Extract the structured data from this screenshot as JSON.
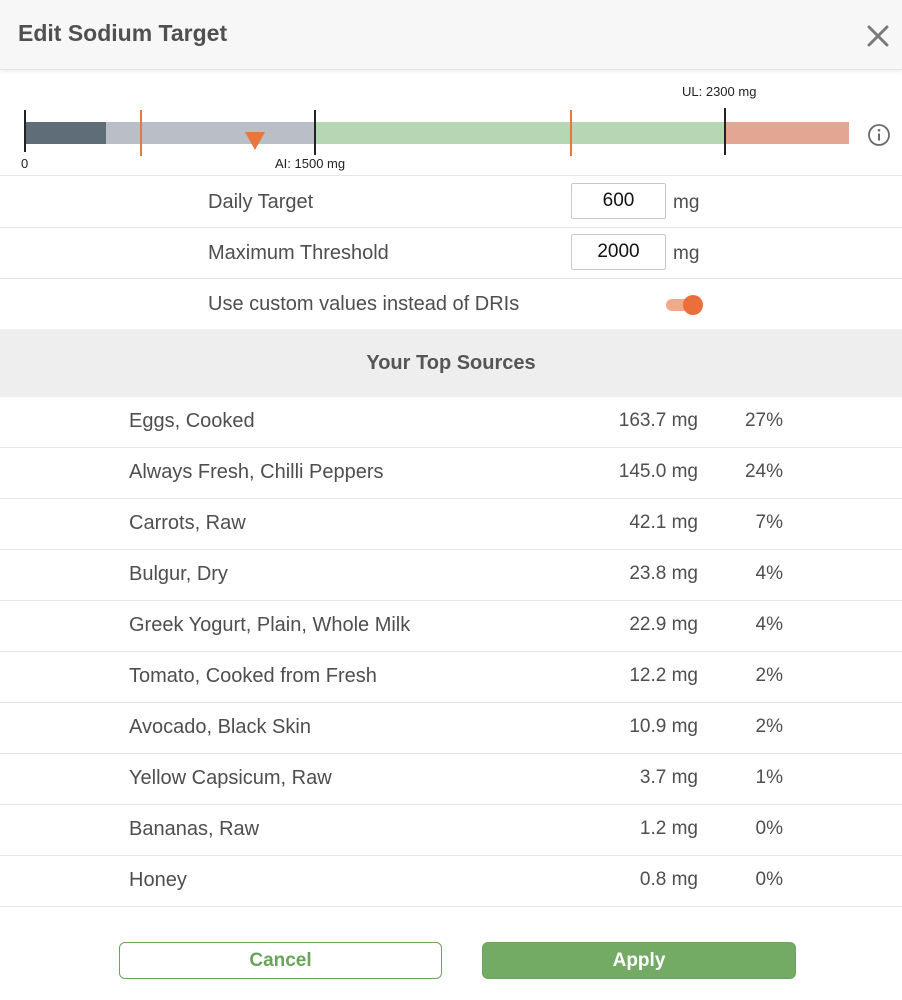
{
  "header": {
    "title": "Edit Sodium Target",
    "close_icon": "close-icon"
  },
  "scale": {
    "zero_label": "0",
    "ai_label": "AI: 1500 mg",
    "ul_label": "UL: 2300 mg",
    "info_icon": "info-icon",
    "colors": {
      "dark": "#5e6d78",
      "gray": "#b9bec7",
      "green": "#b6d7b3",
      "red": "#e3a693",
      "marker": "#e8773d"
    }
  },
  "settings": {
    "daily_target_label": "Daily Target",
    "daily_target_value": "600",
    "daily_target_unit": "mg",
    "max_threshold_label": "Maximum Threshold",
    "max_threshold_value": "2000",
    "max_threshold_unit": "mg",
    "custom_values_label": "Use custom values instead of DRIs",
    "custom_values_enabled": true
  },
  "sources": {
    "title": "Your Top Sources",
    "items": [
      {
        "name": "Eggs, Cooked",
        "amount": "163.7 mg",
        "percent": "27%"
      },
      {
        "name": "Always Fresh, Chilli Peppers",
        "amount": "145.0 mg",
        "percent": "24%"
      },
      {
        "name": "Carrots, Raw",
        "amount": "42.1 mg",
        "percent": "7%"
      },
      {
        "name": "Bulgur, Dry",
        "amount": "23.8 mg",
        "percent": "4%"
      },
      {
        "name": "Greek Yogurt, Plain, Whole Milk",
        "amount": "22.9 mg",
        "percent": "4%"
      },
      {
        "name": "Tomato, Cooked from Fresh",
        "amount": "12.2 mg",
        "percent": "2%"
      },
      {
        "name": "Avocado, Black Skin",
        "amount": "10.9 mg",
        "percent": "2%"
      },
      {
        "name": "Yellow Capsicum, Raw",
        "amount": "3.7 mg",
        "percent": "1%"
      },
      {
        "name": "Bananas, Raw",
        "amount": "1.2 mg",
        "percent": "0%"
      },
      {
        "name": "Honey",
        "amount": "0.8 mg",
        "percent": "0%"
      }
    ]
  },
  "buttons": {
    "cancel_label": "Cancel",
    "apply_label": "Apply",
    "accent": "#73aa64"
  }
}
